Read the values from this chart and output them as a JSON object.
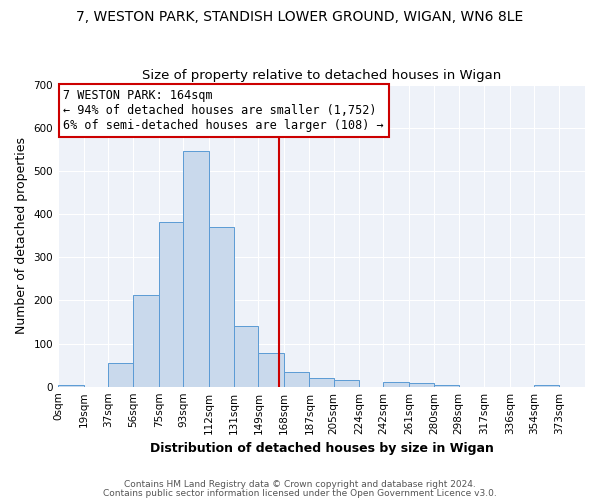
{
  "title": "7, WESTON PARK, STANDISH LOWER GROUND, WIGAN, WN6 8LE",
  "subtitle": "Size of property relative to detached houses in Wigan",
  "xlabel": "Distribution of detached houses by size in Wigan",
  "ylabel": "Number of detached properties",
  "bin_labels": [
    "0sqm",
    "19sqm",
    "37sqm",
    "56sqm",
    "75sqm",
    "93sqm",
    "112sqm",
    "131sqm",
    "149sqm",
    "168sqm",
    "187sqm",
    "205sqm",
    "224sqm",
    "242sqm",
    "261sqm",
    "280sqm",
    "298sqm",
    "317sqm",
    "336sqm",
    "354sqm",
    "373sqm"
  ],
  "bin_edges": [
    0,
    19,
    37,
    56,
    75,
    93,
    112,
    131,
    149,
    168,
    187,
    205,
    224,
    242,
    261,
    280,
    298,
    317,
    336,
    354,
    373
  ],
  "bar_heights": [
    3,
    0,
    55,
    213,
    382,
    547,
    370,
    140,
    77,
    33,
    20,
    15,
    0,
    10,
    8,
    5,
    0,
    0,
    0,
    3,
    0
  ],
  "bar_color": "#c9d9ec",
  "bar_edge_color": "#5b9bd5",
  "vline_x": 164,
  "vline_color": "#cc0000",
  "ylim": [
    0,
    700
  ],
  "yticks": [
    0,
    100,
    200,
    300,
    400,
    500,
    600,
    700
  ],
  "annotation_line1": "7 WESTON PARK: 164sqm",
  "annotation_line2": "← 94% of detached houses are smaller (1,752)",
  "annotation_line3": "6% of semi-detached houses are larger (108) →",
  "footer_line1": "Contains HM Land Registry data © Crown copyright and database right 2024.",
  "footer_line2": "Contains public sector information licensed under the Open Government Licence v3.0.",
  "bg_color": "#eef2f9",
  "grid_color": "#ffffff",
  "title_fontsize": 10,
  "subtitle_fontsize": 9.5,
  "axis_label_fontsize": 9,
  "tick_fontsize": 7.5,
  "annotation_fontsize": 8.5,
  "footer_fontsize": 6.5
}
